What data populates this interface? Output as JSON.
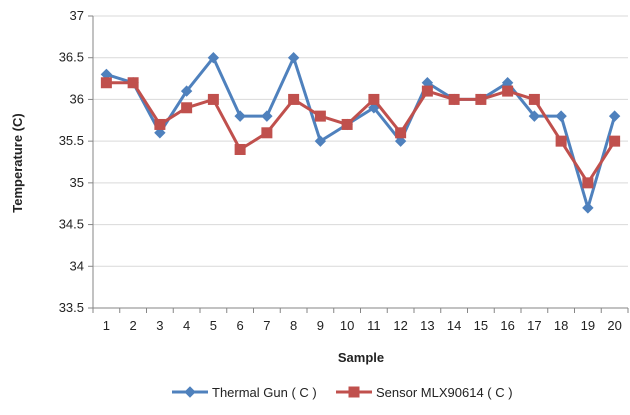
{
  "chart_data": {
    "type": "line",
    "title": "",
    "xlabel": "Sample",
    "ylabel": "Temperature (C)",
    "x": [
      1,
      2,
      3,
      4,
      5,
      6,
      7,
      8,
      9,
      10,
      11,
      12,
      13,
      14,
      15,
      16,
      17,
      18,
      19,
      20
    ],
    "ylim": [
      33.5,
      37
    ],
    "yticks": [
      "33.5",
      "34",
      "34.5",
      "35",
      "35.5",
      "36",
      "36.5",
      "37"
    ],
    "grid": "horizontal",
    "legend_position": "bottom",
    "series": [
      {
        "name": "Thermal Gun ( C )",
        "color": "#4F81BD",
        "marker": "diamond",
        "values": [
          36.3,
          36.2,
          35.6,
          36.1,
          36.5,
          35.8,
          35.8,
          36.5,
          35.5,
          35.7,
          35.9,
          35.5,
          36.2,
          36.0,
          36.0,
          36.2,
          35.8,
          35.8,
          34.7,
          35.8
        ]
      },
      {
        "name": "Sensor MLX90614  ( C )",
        "color": "#C0504D",
        "marker": "square",
        "values": [
          36.2,
          36.2,
          35.7,
          35.9,
          36.0,
          35.4,
          35.6,
          36.0,
          35.8,
          35.7,
          36.0,
          35.6,
          36.1,
          36.0,
          36.0,
          36.1,
          36.0,
          35.5,
          35.0,
          35.5
        ]
      }
    ]
  }
}
